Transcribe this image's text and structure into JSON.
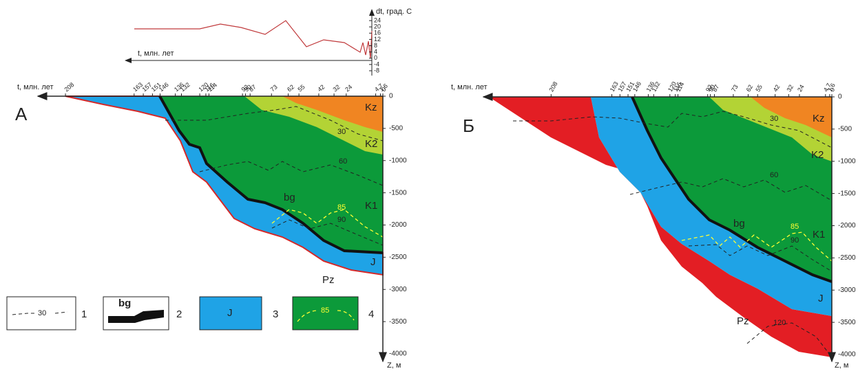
{
  "top_chart": {
    "y_label": "dt, град. С",
    "yticks": [
      24,
      20,
      16,
      12,
      8,
      4,
      0,
      -4,
      -8
    ],
    "x_label": "t, млн. лет"
  },
  "panels": [
    {
      "letter": "А",
      "x_label": "t, млн. лет",
      "time_ticks": [
        208,
        163,
        157,
        151,
        146,
        136,
        132,
        120,
        116,
        114,
        92,
        90,
        87,
        73,
        62,
        55,
        42,
        32,
        24,
        4.7,
        1.6,
        0
      ],
      "depth_ticks": [
        0,
        -500,
        -1000,
        -1500,
        -2000,
        -2500,
        -3000,
        -3500,
        -4000
      ],
      "z_label": "Z, м",
      "labels": {
        "kz": "Kz",
        "k2": "K2",
        "k1": "K1",
        "j": "J",
        "pz": "Pz",
        "bg": "bg",
        "iso30": "30",
        "iso60": "60",
        "iso85": "85",
        "iso90": "90"
      }
    },
    {
      "letter": "Б",
      "x_label": "t, млн. лет",
      "time_ticks": [
        208,
        163,
        157,
        151,
        146,
        136,
        132,
        120,
        116,
        114,
        92,
        90,
        87,
        73,
        62,
        55,
        42,
        32,
        24,
        4.7,
        1.6,
        0
      ],
      "depth_ticks": [
        0,
        -500,
        -1000,
        -1500,
        -2000,
        -2500,
        -3000,
        -3500,
        -4000
      ],
      "z_label": "Z, м",
      "labels": {
        "kz": "Kz",
        "k2": "K2",
        "k1": "K1",
        "j": "J",
        "pz": "Pz",
        "bg": "bg",
        "iso30": "30",
        "iso60": "60",
        "iso85": "85",
        "iso90": "90",
        "iso120": "120"
      }
    }
  ],
  "legend": [
    {
      "sample": "30",
      "number": "1"
    },
    {
      "sample": "bg",
      "number": "2"
    },
    {
      "sample": "J",
      "number": "3"
    },
    {
      "sample": "85",
      "number": "4"
    }
  ]
}
